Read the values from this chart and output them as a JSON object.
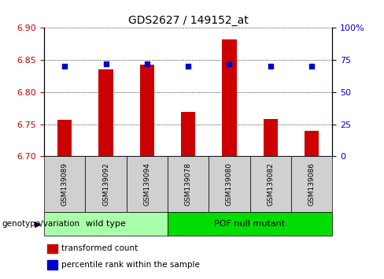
{
  "title": "GDS2627 / 149152_at",
  "categories": [
    "GSM139089",
    "GSM139092",
    "GSM139094",
    "GSM139078",
    "GSM139080",
    "GSM139082",
    "GSM139086"
  ],
  "transformed_count": [
    6.757,
    6.835,
    6.843,
    6.769,
    6.882,
    6.758,
    6.74
  ],
  "percentile_rank": [
    70,
    72,
    72,
    70,
    72,
    70,
    70
  ],
  "ylim_left": [
    6.7,
    6.9
  ],
  "yticks_left": [
    6.7,
    6.75,
    6.8,
    6.85,
    6.9
  ],
  "ylim_right": [
    0,
    100
  ],
  "yticks_right": [
    0,
    25,
    50,
    75,
    100
  ],
  "bar_color": "#cc0000",
  "dot_color": "#0000cc",
  "bar_bottom": 6.7,
  "group_label": "genotype/variation",
  "groups_info": [
    {
      "label": "wild type",
      "start": 0,
      "end": 2,
      "color": "#aaffaa"
    },
    {
      "label": "POF null mutant",
      "start": 3,
      "end": 6,
      "color": "#00dd00"
    }
  ],
  "legend_items": [
    "transformed count",
    "percentile rank within the sample"
  ],
  "legend_colors": [
    "#cc0000",
    "#0000cc"
  ],
  "tick_label_color_left": "#cc0000",
  "tick_label_color_right": "#0000cc"
}
